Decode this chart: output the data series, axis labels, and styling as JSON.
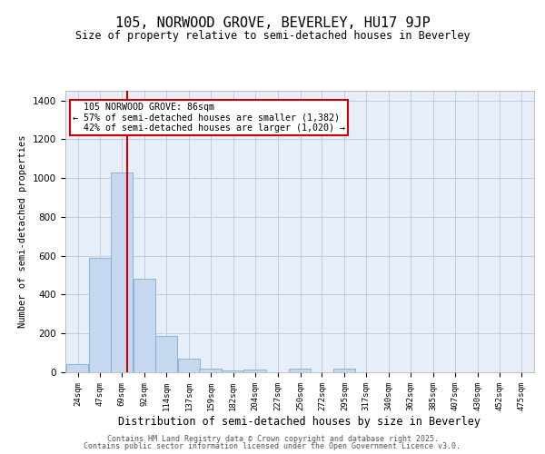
{
  "title": "105, NORWOOD GROVE, BEVERLEY, HU17 9JP",
  "subtitle": "Size of property relative to semi-detached houses in Beverley",
  "xlabel": "Distribution of semi-detached houses by size in Beverley",
  "ylabel": "Number of semi-detached properties",
  "property_size": 86,
  "property_label": "105 NORWOOD GROVE: 86sqm",
  "pct_smaller": 57,
  "pct_larger": 42,
  "count_smaller": 1382,
  "count_larger": 1020,
  "bar_color": "#c5d8f0",
  "bar_edge_color": "#7aadd4",
  "vline_color": "#cc0000",
  "annotation_box_color": "#cc0000",
  "background_color": "#e8eef8",
  "grid_color": "#b8c8e0",
  "bins": [
    24,
    47,
    69,
    92,
    114,
    137,
    159,
    182,
    204,
    227,
    250,
    272,
    295,
    317,
    340,
    362,
    385,
    407,
    430,
    452,
    475
  ],
  "counts": [
    40,
    590,
    1030,
    480,
    185,
    70,
    18,
    10,
    15,
    0,
    20,
    0,
    20,
    0,
    0,
    0,
    0,
    0,
    0,
    0
  ],
  "ylim": [
    0,
    1450
  ],
  "yticks": [
    0,
    200,
    400,
    600,
    800,
    1000,
    1200,
    1400
  ],
  "footer1": "Contains HM Land Registry data © Crown copyright and database right 2025.",
  "footer2": "Contains public sector information licensed under the Open Government Licence v3.0."
}
